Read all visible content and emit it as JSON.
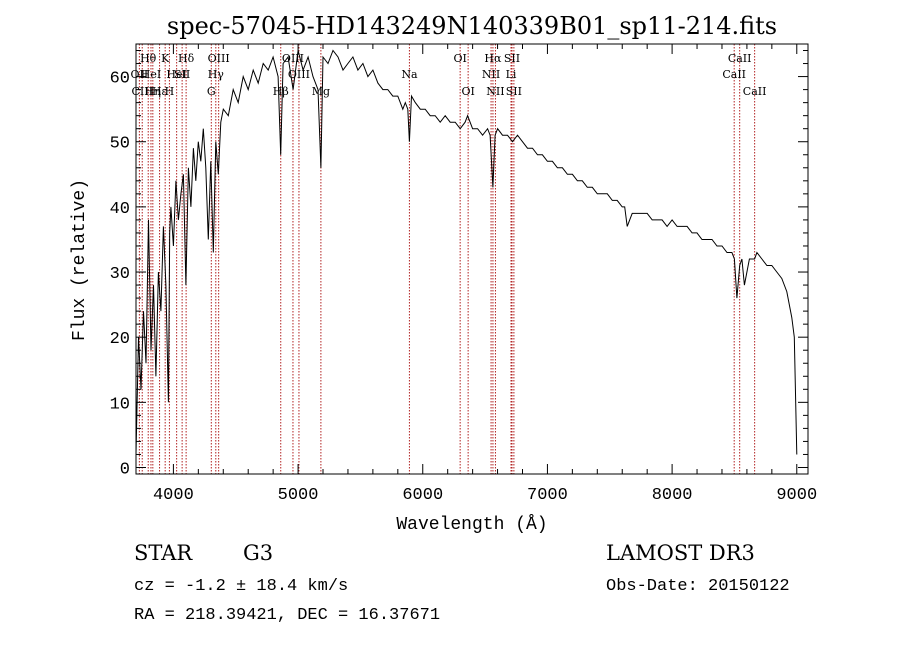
{
  "chart_data": {
    "type": "line",
    "title": "spec-57045-HD143249N140339B01_sp11-214.fits",
    "xlabel": "Wavelength (Å)",
    "ylabel": "Flux (relative)",
    "xlim": [
      3700,
      9090
    ],
    "ylim": [
      -1,
      65
    ],
    "xticks": [
      4000,
      5000,
      6000,
      7000,
      8000,
      9000
    ],
    "yticks": [
      0,
      10,
      20,
      30,
      40,
      50,
      60
    ],
    "series": [
      {
        "name": "flux",
        "x": [
          3700,
          3720,
          3740,
          3760,
          3780,
          3800,
          3820,
          3840,
          3860,
          3880,
          3900,
          3920,
          3940,
          3960,
          3970,
          3980,
          4000,
          4020,
          4040,
          4060,
          4080,
          4100,
          4120,
          4140,
          4160,
          4180,
          4200,
          4220,
          4240,
          4260,
          4280,
          4300,
          4320,
          4340,
          4360,
          4380,
          4400,
          4440,
          4480,
          4520,
          4560,
          4600,
          4640,
          4680,
          4720,
          4760,
          4800,
          4840,
          4861,
          4880,
          4920,
          4960,
          5000,
          5040,
          5080,
          5120,
          5160,
          5183,
          5200,
          5240,
          5280,
          5320,
          5360,
          5400,
          5440,
          5480,
          5520,
          5560,
          5600,
          5640,
          5680,
          5720,
          5760,
          5800,
          5840,
          5860,
          5880,
          5893,
          5910,
          5940,
          5980,
          6020,
          6060,
          6100,
          6140,
          6180,
          6220,
          6260,
          6300,
          6340,
          6360,
          6400,
          6440,
          6480,
          6520,
          6540,
          6563,
          6580,
          6600,
          6640,
          6680,
          6720,
          6760,
          6800,
          6840,
          6880,
          6920,
          6960,
          7000,
          7040,
          7080,
          7120,
          7160,
          7200,
          7240,
          7280,
          7320,
          7360,
          7400,
          7440,
          7480,
          7520,
          7560,
          7600,
          7620,
          7640,
          7680,
          7720,
          7760,
          7800,
          7840,
          7880,
          7920,
          7960,
          8000,
          8040,
          8080,
          8120,
          8160,
          8200,
          8240,
          8280,
          8320,
          8360,
          8400,
          8440,
          8480,
          8500,
          8520,
          8542,
          8560,
          8580,
          8620,
          8640,
          8662,
          8680,
          8720,
          8760,
          8800,
          8840,
          8880,
          8920,
          8960,
          8980,
          9000
        ],
        "y": [
          2,
          20,
          12,
          24,
          16,
          38,
          18,
          28,
          14,
          30,
          24,
          37,
          28,
          10,
          36,
          40,
          34,
          44,
          38,
          42,
          45,
          28,
          46,
          40,
          49,
          44,
          50,
          47,
          52,
          46,
          35,
          47,
          33,
          50,
          45,
          53,
          55,
          54,
          58,
          56,
          60,
          58,
          61,
          59,
          62,
          61,
          63,
          60,
          48,
          62,
          63,
          58,
          64,
          61,
          63,
          60,
          58,
          46,
          63,
          62,
          64,
          63,
          61,
          62,
          63,
          61,
          62,
          60,
          61,
          59,
          58,
          58,
          57,
          57,
          55,
          56,
          55,
          50,
          57,
          56,
          55,
          55,
          54,
          54,
          53,
          54,
          53,
          53,
          52,
          53,
          54,
          52,
          52,
          51,
          52,
          51,
          43,
          51,
          52,
          51,
          51,
          50,
          51,
          50,
          49,
          49,
          48,
          48,
          47,
          47,
          46,
          46,
          45,
          45,
          44,
          44,
          43,
          43,
          42,
          42,
          42,
          41,
          41,
          40,
          40,
          37,
          39,
          39,
          39,
          39,
          38,
          38,
          38,
          37,
          38,
          37,
          37,
          37,
          36,
          36,
          35,
          35,
          35,
          34,
          34,
          33,
          33,
          32,
          26,
          31,
          32,
          28,
          32,
          32,
          32,
          33,
          32,
          31,
          31,
          30,
          29,
          27,
          23,
          20,
          2
        ]
      }
    ],
    "lines": [
      {
        "wl": 3727,
        "label": "OII",
        "row": 1
      },
      {
        "wl": 3750,
        "label": "CIII",
        "row": 2
      },
      {
        "wl": 3798,
        "label": "Hθ",
        "row": 0
      },
      {
        "wl": 3820,
        "label": "HeI",
        "row": 1
      },
      {
        "wl": 3835,
        "label": "Hη",
        "row": 2
      },
      {
        "wl": 3889,
        "label": "Hε",
        "row": 2
      },
      {
        "wl": 3934,
        "label": "K",
        "row": 0
      },
      {
        "wl": 3968,
        "label": "H",
        "row": 2
      },
      {
        "wl": 4026,
        "label": "HeI",
        "row": 1
      },
      {
        "wl": 4102,
        "label": "Hδ",
        "row": 0
      },
      {
        "wl": 4070,
        "label": "SII",
        "row": 1
      },
      {
        "wl": 4304,
        "label": "G",
        "row": 2
      },
      {
        "wl": 4340,
        "label": "Hγ",
        "row": 1
      },
      {
        "wl": 4363,
        "label": "OIII",
        "row": 0
      },
      {
        "wl": 4861,
        "label": "Hβ",
        "row": 2
      },
      {
        "wl": 4959,
        "label": "OIII",
        "row": 0
      },
      {
        "wl": 5007,
        "label": "OIII",
        "row": 1
      },
      {
        "wl": 5183,
        "label": "Mg",
        "row": 2
      },
      {
        "wl": 5893,
        "label": "Na",
        "row": 1
      },
      {
        "wl": 6300,
        "label": "OI",
        "row": 0
      },
      {
        "wl": 6364,
        "label": "OI",
        "row": 2
      },
      {
        "wl": 6548,
        "label": "NII",
        "row": 1
      },
      {
        "wl": 6563,
        "label": "Hα",
        "row": 0
      },
      {
        "wl": 6583,
        "label": "NII",
        "row": 2
      },
      {
        "wl": 6708,
        "label": "Li",
        "row": 1
      },
      {
        "wl": 6716,
        "label": "SII",
        "row": 0
      },
      {
        "wl": 6731,
        "label": "SII",
        "row": 2
      },
      {
        "wl": 8498,
        "label": "CaII",
        "row": 1
      },
      {
        "wl": 8542,
        "label": "CaII",
        "row": 0
      },
      {
        "wl": 8662,
        "label": "CaII",
        "row": 2
      }
    ]
  },
  "info": {
    "object_class": "STAR",
    "subclass": "G3",
    "survey": "LAMOST DR3",
    "redshift_text": "cz = -1.2 ± 18.4 km/s",
    "obs_date": "Obs-Date: 20150122",
    "coords": "RA = 218.39421, DEC =  16.37671"
  },
  "colors": {
    "line_marker": "#b22222",
    "spectrum": "#000000",
    "axes": "#000000"
  }
}
